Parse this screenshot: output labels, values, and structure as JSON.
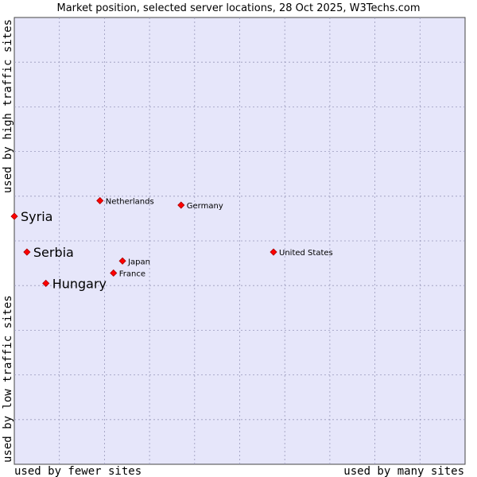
{
  "chart_data": {
    "type": "scatter",
    "title": "Market position, selected server locations, 28 Oct 2025, W3Techs.com",
    "xlabel_low": "used by fewer sites",
    "xlabel_high": "used by many sites",
    "ylabel_low": "used by low traffic sites",
    "ylabel_high": "used by high traffic sites",
    "xlim": [
      0,
      10
    ],
    "ylim": [
      0,
      10
    ],
    "grid": true,
    "colors": {
      "plot_bg": "#e6e6fa",
      "grid": "#9999bb",
      "marker": "#ff0000",
      "marker_edge": "#aa0000"
    },
    "points": [
      {
        "label": "Syria",
        "x": 0.0,
        "y": 5.55,
        "emphasis": true
      },
      {
        "label": "Serbia",
        "x": 0.28,
        "y": 4.75,
        "emphasis": true
      },
      {
        "label": "Hungary",
        "x": 0.7,
        "y": 4.05,
        "emphasis": true
      },
      {
        "label": "Netherlands",
        "x": 1.9,
        "y": 5.9,
        "emphasis": false
      },
      {
        "label": "Germany",
        "x": 3.7,
        "y": 5.8,
        "emphasis": false
      },
      {
        "label": "Japan",
        "x": 2.4,
        "y": 4.55,
        "emphasis": false
      },
      {
        "label": "France",
        "x": 2.2,
        "y": 4.28,
        "emphasis": false
      },
      {
        "label": "United States",
        "x": 5.75,
        "y": 4.75,
        "emphasis": false
      }
    ]
  }
}
